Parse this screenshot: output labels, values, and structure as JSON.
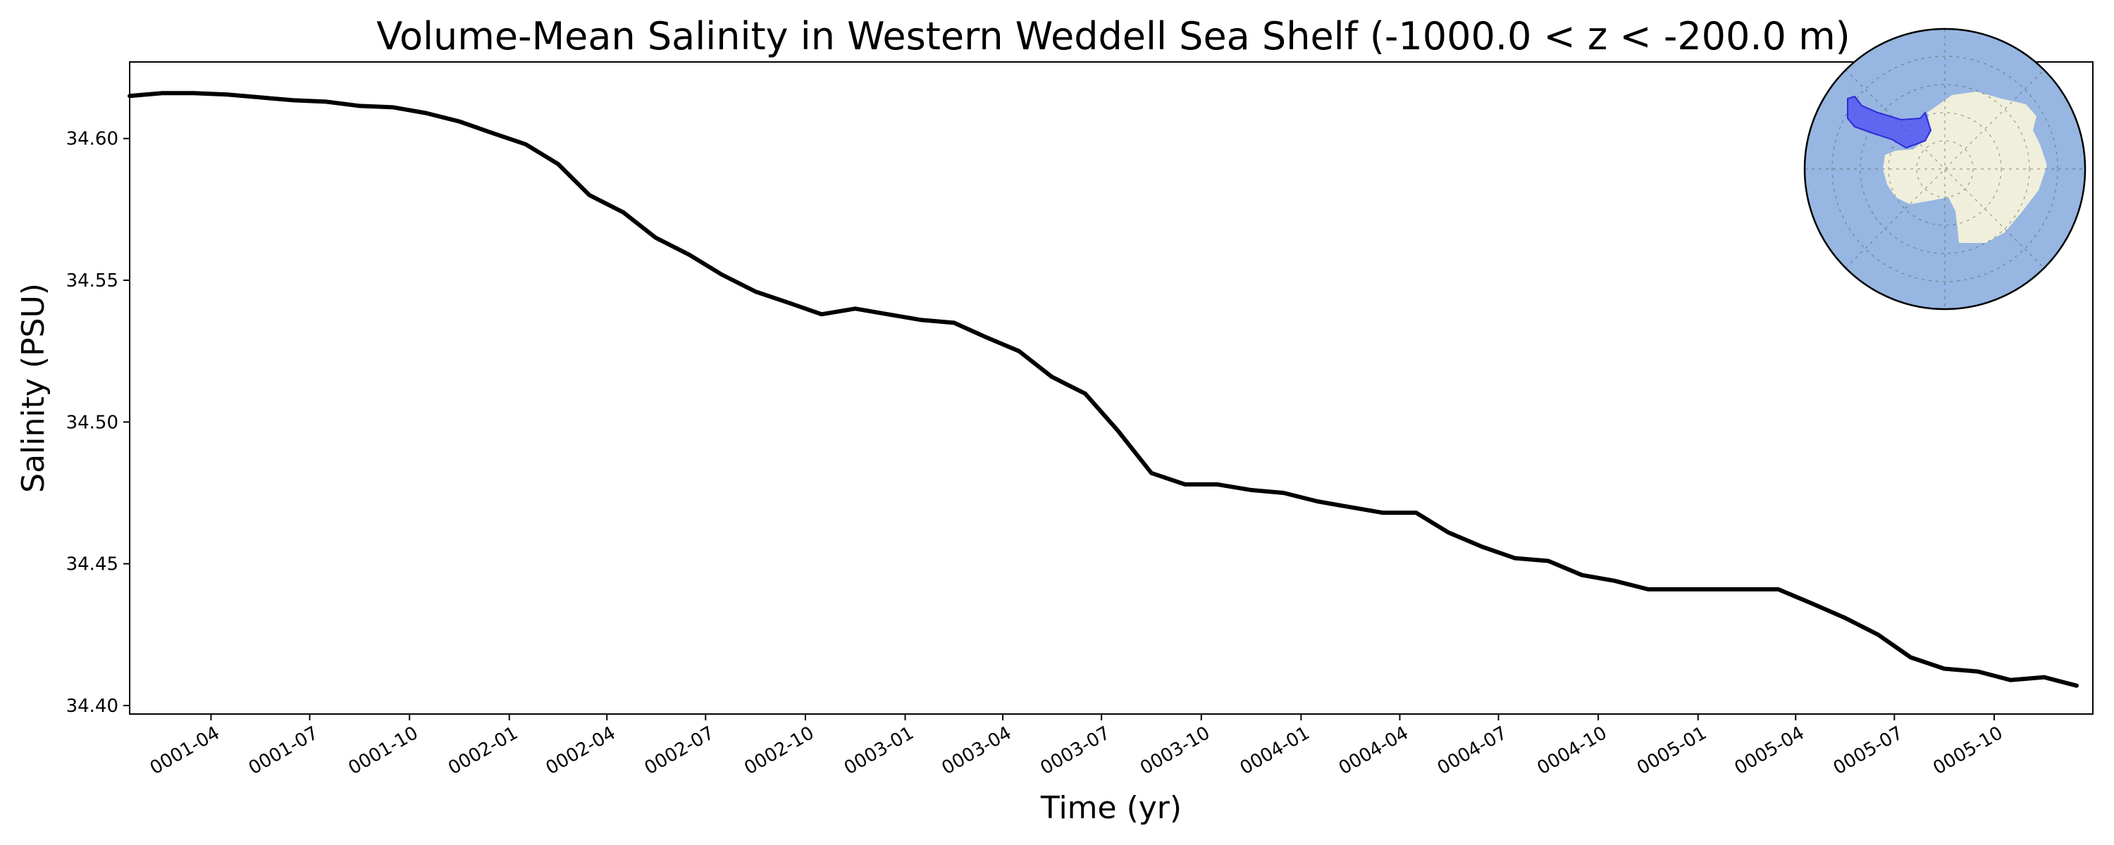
{
  "chart_data": {
    "type": "line",
    "title": "Volume-Mean Salinity in Western Weddell Sea Shelf (-1000.0 < z < -200.0 m)",
    "xlabel": "Time (yr)",
    "ylabel": "Salinity (PSU)",
    "x_ticks": [
      "0001-04",
      "0001-07",
      "0001-10",
      "0002-01",
      "0002-04",
      "0002-07",
      "0002-10",
      "0003-01",
      "0003-04",
      "0003-07",
      "0003-10",
      "0004-01",
      "0004-04",
      "0004-07",
      "0004-10",
      "0005-01",
      "0005-04",
      "0005-07",
      "0005-10"
    ],
    "y_ticks": [
      "34.40",
      "34.45",
      "34.50",
      "34.55",
      "34.60"
    ],
    "ylim": [
      34.397,
      34.627
    ],
    "xlim": [
      "0001-01-16",
      "0005-12-31"
    ],
    "grid": false,
    "legend": "none",
    "inset": "south-polar map of Antarctica with the Western Weddell Sea shelf region highlighted",
    "colors": {
      "line": "#000000",
      "ocean": "#97b6e1",
      "land": "#efefdb",
      "region": "#4c4cf5"
    },
    "series": [
      {
        "x": [
          "0001-01-16",
          "0001-02-15",
          "0001-03-16",
          "0001-04-16",
          "0001-05-16",
          "0001-06-16",
          "0001-07-16",
          "0001-08-16",
          "0001-09-16",
          "0001-10-16",
          "0001-11-16",
          "0001-12-16",
          "0002-01-16",
          "0002-02-15",
          "0002-03-16",
          "0002-04-16",
          "0002-05-16",
          "0002-06-16",
          "0002-07-16",
          "0002-08-16",
          "0002-09-16",
          "0002-10-16",
          "0002-11-16",
          "0002-12-16",
          "0003-01-16",
          "0003-02-15",
          "0003-03-16",
          "0003-04-16",
          "0003-05-16",
          "0003-06-16",
          "0003-07-16",
          "0003-08-16",
          "0003-09-16",
          "0003-10-16",
          "0003-11-16",
          "0003-12-16",
          "0004-01-16",
          "0004-02-15",
          "0004-03-16",
          "0004-04-16",
          "0004-05-16",
          "0004-06-16",
          "0004-07-16",
          "0004-08-16",
          "0004-09-16",
          "0004-10-16",
          "0004-11-16",
          "0004-12-16",
          "0005-01-16",
          "0005-02-15",
          "0005-03-16",
          "0005-04-16",
          "0005-05-16",
          "0005-06-16",
          "0005-07-16",
          "0005-08-16",
          "0005-09-16",
          "0005-10-16",
          "0005-11-16",
          "0005-12-16"
        ],
        "values": [
          34.615,
          34.616,
          34.616,
          34.6155,
          34.6145,
          34.6135,
          34.613,
          34.6115,
          34.611,
          34.609,
          34.606,
          34.602,
          34.598,
          34.591,
          34.58,
          34.574,
          34.565,
          34.559,
          34.552,
          34.546,
          34.542,
          34.538,
          34.54,
          34.538,
          34.536,
          34.535,
          34.53,
          34.525,
          34.516,
          34.51,
          34.497,
          34.482,
          34.478,
          34.478,
          34.476,
          34.475,
          34.472,
          34.47,
          34.468,
          34.468,
          34.461,
          34.456,
          34.452,
          34.451,
          34.446,
          34.444,
          34.441,
          34.441,
          34.441,
          34.441,
          34.441,
          34.436,
          34.431,
          34.425,
          34.417,
          34.413,
          34.412,
          34.409,
          34.41,
          34.407
        ]
      }
    ]
  }
}
